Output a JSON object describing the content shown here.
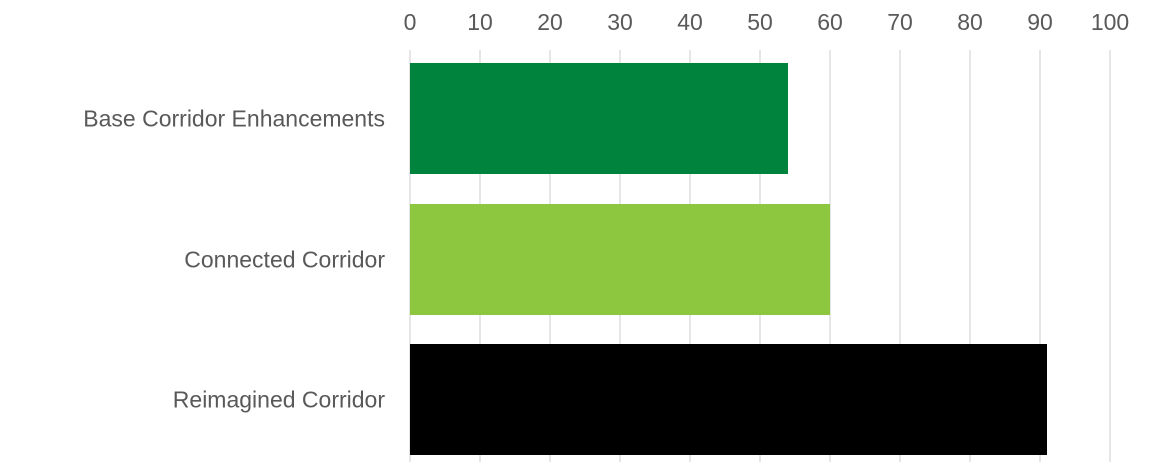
{
  "chart_data": {
    "type": "bar",
    "orientation": "horizontal",
    "categories": [
      "Base Corridor Enhancements",
      "Connected Corridor",
      "Reimagined Corridor"
    ],
    "values": [
      54,
      60,
      91
    ],
    "colors": [
      "#00843d",
      "#8dc63f",
      "#000000"
    ],
    "xlim": [
      0,
      100
    ],
    "xticks": [
      0,
      10,
      20,
      30,
      40,
      50,
      60,
      70,
      80,
      90,
      100
    ],
    "x_axis_position": "top",
    "grid": true,
    "grid_color": "#d9d9d9",
    "label_color": "#595959",
    "title": "",
    "xlabel": "",
    "ylabel": ""
  }
}
